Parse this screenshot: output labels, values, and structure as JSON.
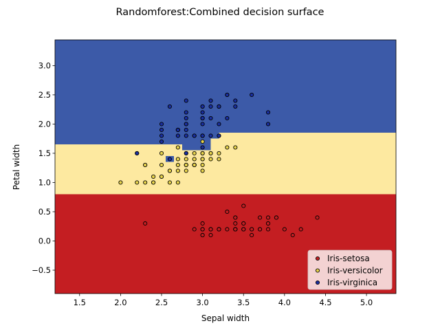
{
  "chart_data": {
    "type": "scatter",
    "title": "Randomforest:Combined decision surface",
    "xlabel": "Sepal width",
    "ylabel": "Petal width",
    "xlim": [
      1.2,
      5.36
    ],
    "ylim": [
      -0.9,
      3.44
    ],
    "xticks": [
      1.5,
      2.0,
      2.5,
      3.0,
      3.5,
      4.0,
      4.5,
      5.0
    ],
    "yticks": [
      -0.5,
      0.0,
      0.5,
      1.0,
      1.5,
      2.0,
      2.5,
      3.0
    ],
    "xtick_labels": [
      "1.5",
      "2.0",
      "2.5",
      "3.0",
      "3.5",
      "4.0",
      "4.5",
      "5.0"
    ],
    "ytick_labels": [
      "−0.5",
      "0.0",
      "0.5",
      "1.0",
      "1.5",
      "2.0",
      "2.5",
      "3.0"
    ],
    "grid": false,
    "legend_position": "lower-right",
    "decision_surface": {
      "background_class": "Iris-virginica",
      "regions": [
        {
          "class": "Iris-setosa",
          "x": [
            1.2,
            5.36
          ],
          "y": [
            -0.9,
            0.8
          ]
        },
        {
          "class": "Iris-versicolor",
          "x": [
            1.2,
            2.75
          ],
          "y": [
            0.8,
            1.65
          ]
        },
        {
          "class": "Iris-versicolor",
          "x": [
            2.75,
            3.1
          ],
          "y": [
            0.8,
            1.55
          ]
        },
        {
          "class": "Iris-versicolor",
          "x": [
            3.1,
            3.2
          ],
          "y": [
            0.8,
            1.75
          ]
        },
        {
          "class": "Iris-versicolor",
          "x": [
            3.2,
            5.36
          ],
          "y": [
            0.8,
            1.85
          ]
        },
        {
          "class": "Iris-virginica",
          "x": [
            2.55,
            2.65
          ],
          "y": [
            1.35,
            1.45
          ]
        }
      ]
    },
    "series": [
      {
        "name": "Iris-setosa",
        "color": "#c41e22",
        "surface_color": "#c41e22",
        "x": [
          3.5,
          3.0,
          3.2,
          3.1,
          3.6,
          3.9,
          3.4,
          3.4,
          2.9,
          3.1,
          3.7,
          3.4,
          3.0,
          3.0,
          4.0,
          4.4,
          3.9,
          3.5,
          3.8,
          3.8,
          3.4,
          3.7,
          3.6,
          3.3,
          3.4,
          3.0,
          3.4,
          3.5,
          3.4,
          3.2,
          3.1,
          3.4,
          4.1,
          4.2,
          3.1,
          3.2,
          3.5,
          3.6,
          3.0,
          3.4,
          3.5,
          2.3,
          3.2,
          3.5,
          3.8,
          3.0,
          3.8,
          3.2,
          3.7,
          3.3
        ],
        "y": [
          0.2,
          0.2,
          0.2,
          0.2,
          0.2,
          0.4,
          0.3,
          0.2,
          0.2,
          0.1,
          0.2,
          0.2,
          0.1,
          0.1,
          0.2,
          0.4,
          0.4,
          0.3,
          0.3,
          0.3,
          0.2,
          0.4,
          0.2,
          0.5,
          0.2,
          0.2,
          0.4,
          0.2,
          0.2,
          0.2,
          0.2,
          0.4,
          0.1,
          0.2,
          0.2,
          0.2,
          0.2,
          0.1,
          0.2,
          0.2,
          0.3,
          0.3,
          0.2,
          0.6,
          0.4,
          0.3,
          0.2,
          0.2,
          0.2,
          0.2
        ]
      },
      {
        "name": "Iris-versicolor",
        "color": "#e8d44d",
        "surface_color": "#fde9a0",
        "x": [
          3.2,
          3.2,
          3.1,
          2.3,
          2.8,
          2.8,
          3.3,
          2.4,
          2.9,
          2.7,
          2.0,
          3.0,
          2.2,
          2.9,
          2.9,
          3.1,
          3.0,
          2.7,
          2.2,
          2.5,
          3.2,
          2.8,
          2.5,
          2.8,
          2.9,
          3.0,
          2.8,
          3.0,
          2.9,
          2.6,
          2.4,
          2.4,
          2.7,
          2.7,
          3.0,
          3.4,
          3.1,
          2.3,
          3.0,
          2.5,
          2.6,
          3.0,
          2.6,
          2.3,
          2.7,
          3.0,
          2.9,
          2.9,
          2.5,
          2.8
        ],
        "y": [
          1.4,
          1.5,
          1.5,
          1.3,
          1.5,
          1.3,
          1.6,
          1.0,
          1.3,
          1.4,
          1.0,
          1.5,
          1.0,
          1.4,
          1.3,
          1.4,
          1.5,
          1.0,
          1.5,
          1.1,
          1.8,
          1.3,
          1.5,
          1.2,
          1.3,
          1.4,
          1.4,
          1.7,
          1.5,
          1.0,
          1.1,
          1.0,
          1.2,
          1.6,
          1.5,
          1.6,
          1.5,
          1.3,
          1.3,
          1.3,
          1.2,
          1.4,
          1.2,
          1.0,
          1.3,
          1.2,
          1.3,
          1.3,
          1.1,
          1.3
        ]
      },
      {
        "name": "Iris-virginica",
        "color": "#1a2fa0",
        "surface_color": "#3c5aa8",
        "x": [
          3.3,
          2.7,
          3.0,
          2.9,
          3.0,
          3.0,
          2.5,
          2.9,
          2.5,
          3.6,
          3.2,
          2.7,
          3.0,
          2.5,
          2.8,
          3.2,
          3.0,
          3.8,
          2.6,
          2.2,
          3.2,
          2.8,
          2.8,
          2.7,
          3.3,
          3.2,
          2.8,
          3.0,
          2.8,
          3.0,
          2.8,
          3.8,
          2.8,
          2.8,
          2.6,
          3.0,
          3.4,
          3.1,
          3.0,
          3.1,
          3.1,
          3.1,
          2.7,
          3.2,
          3.3,
          3.0,
          2.5,
          3.0,
          3.4,
          3.0
        ],
        "y": [
          2.5,
          1.9,
          2.1,
          1.8,
          2.2,
          2.1,
          1.7,
          1.8,
          1.8,
          2.5,
          2.0,
          1.9,
          2.1,
          2.0,
          2.4,
          2.3,
          1.8,
          2.2,
          2.3,
          1.5,
          2.3,
          2.0,
          2.0,
          1.8,
          2.1,
          1.8,
          1.8,
          1.8,
          2.1,
          1.6,
          1.9,
          2.0,
          2.2,
          1.5,
          1.4,
          2.3,
          2.4,
          1.8,
          1.8,
          2.1,
          2.4,
          2.3,
          1.9,
          2.3,
          2.5,
          2.3,
          1.9,
          2.0,
          2.3,
          1.8
        ]
      }
    ]
  }
}
